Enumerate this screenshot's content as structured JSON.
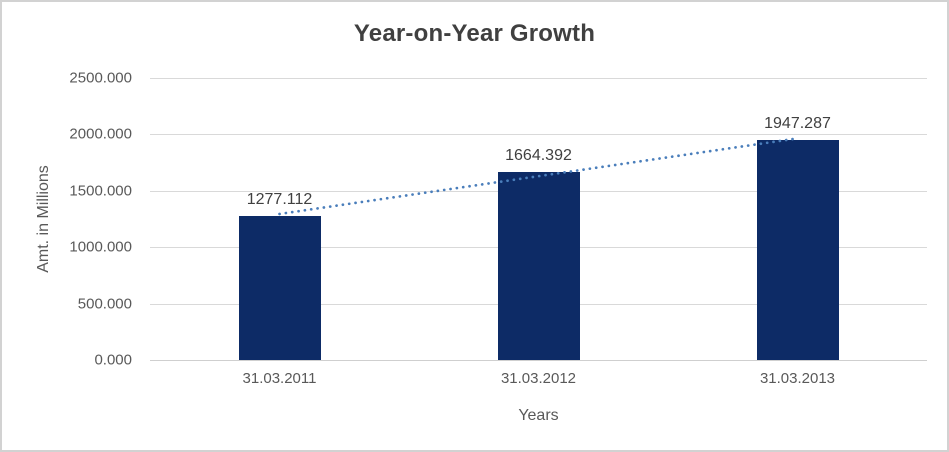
{
  "colors": {
    "background": "#ffffff",
    "border": "#d2d2d2",
    "bar": "#0d2b66",
    "trendline": "#4a7ebb",
    "gridline": "#d9d9d9",
    "axis_line": "#cfcfcf",
    "title_text": "#404040",
    "tick_text": "#595959",
    "data_label_text": "#404040"
  },
  "chart_data": {
    "type": "bar",
    "title": "Year-on-Year Growth",
    "xlabel": "Years",
    "ylabel": "Amt. in Millions",
    "categories": [
      "31.03.2011",
      "31.03.2012",
      "31.03.2013"
    ],
    "values": [
      1277.112,
      1664.392,
      1947.287
    ],
    "data_labels": [
      "1277.112",
      "1664.392",
      "1947.287"
    ],
    "ylim": [
      0,
      2500
    ],
    "ytick_step": 500,
    "ytick_labels": [
      "0.000",
      "500.000",
      "1000.000",
      "1500.000",
      "2000.000",
      "2500.000"
    ],
    "grid": true,
    "legend": "none",
    "trendline": {
      "type": "linear",
      "style": "dotted"
    }
  }
}
